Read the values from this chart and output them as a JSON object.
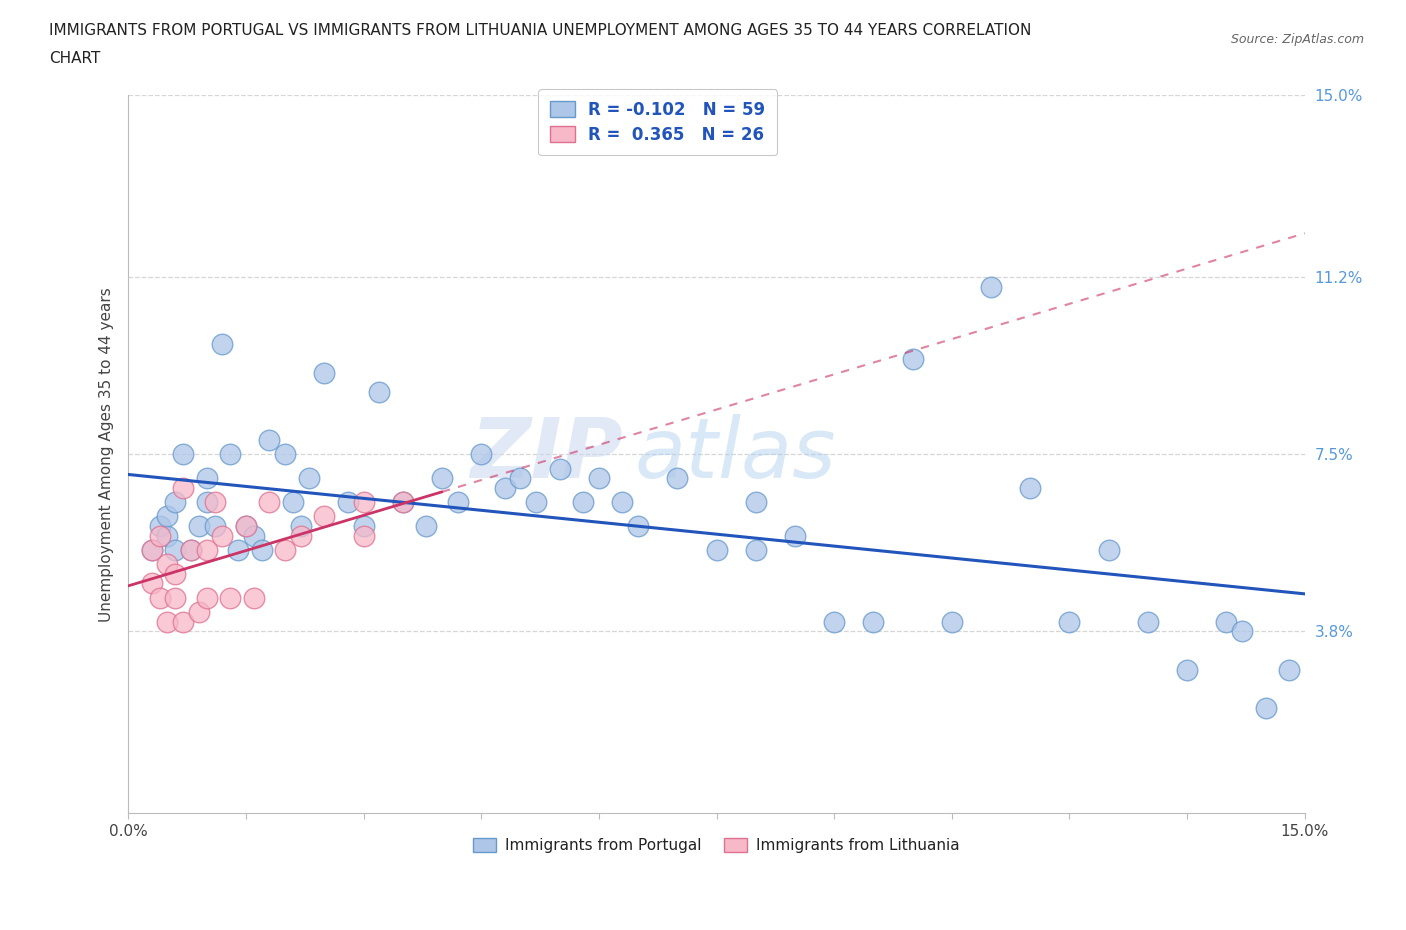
{
  "title": "IMMIGRANTS FROM PORTUGAL VS IMMIGRANTS FROM LITHUANIA UNEMPLOYMENT AMONG AGES 35 TO 44 YEARS CORRELATION\nCHART",
  "source": "Source: ZipAtlas.com",
  "ylabel": "Unemployment Among Ages 35 to 44 years",
  "xlim": [
    0,
    15
  ],
  "ylim": [
    0,
    15
  ],
  "ytick_positions": [
    3.8,
    7.5,
    11.2,
    15.0
  ],
  "ytick_labels": [
    "3.8%",
    "7.5%",
    "11.2%",
    "15.0%"
  ],
  "portugal_color": "#aec6e8",
  "portugal_edge": "#6699cc",
  "lithuania_color": "#f7b8c8",
  "lithuania_edge": "#e07090",
  "portugal_R": -0.102,
  "portugal_N": 59,
  "lithuania_R": 0.365,
  "lithuania_N": 26,
  "portugal_line_color": "#2255bb",
  "lithuania_line_color": "#cc3366",
  "portugal_x": [
    0.3,
    0.4,
    0.5,
    0.5,
    0.6,
    0.6,
    0.7,
    0.8,
    0.9,
    1.0,
    1.0,
    1.1,
    1.2,
    1.3,
    1.4,
    1.5,
    1.6,
    1.7,
    1.8,
    2.0,
    2.1,
    2.2,
    2.3,
    2.5,
    2.8,
    3.0,
    3.2,
    3.5,
    3.8,
    4.0,
    4.2,
    4.5,
    4.8,
    5.0,
    5.2,
    5.5,
    5.8,
    6.0,
    6.3,
    6.5,
    7.0,
    7.5,
    8.0,
    8.0,
    8.5,
    9.0,
    9.5,
    10.0,
    10.5,
    11.0,
    11.5,
    12.0,
    12.5,
    13.0,
    13.5,
    14.0,
    14.2,
    14.5,
    14.8
  ],
  "portugal_y": [
    5.5,
    6.0,
    5.8,
    6.2,
    5.5,
    6.5,
    7.5,
    5.5,
    6.0,
    6.5,
    7.0,
    6.0,
    9.8,
    7.5,
    5.5,
    6.0,
    5.8,
    5.5,
    7.8,
    7.5,
    6.5,
    6.0,
    7.0,
    9.2,
    6.5,
    6.0,
    8.8,
    6.5,
    6.0,
    7.0,
    6.5,
    7.5,
    6.8,
    7.0,
    6.5,
    7.2,
    6.5,
    7.0,
    6.5,
    6.0,
    7.0,
    5.5,
    5.5,
    6.5,
    5.8,
    4.0,
    4.0,
    9.5,
    4.0,
    11.0,
    6.8,
    4.0,
    5.5,
    4.0,
    3.0,
    4.0,
    3.8,
    2.2,
    3.0
  ],
  "lithuania_x": [
    0.3,
    0.3,
    0.4,
    0.4,
    0.5,
    0.5,
    0.6,
    0.6,
    0.7,
    0.7,
    0.8,
    0.9,
    1.0,
    1.0,
    1.1,
    1.2,
    1.3,
    1.5,
    1.6,
    1.8,
    2.0,
    2.2,
    2.5,
    3.0,
    3.0,
    3.5
  ],
  "lithuania_y": [
    4.8,
    5.5,
    4.5,
    5.8,
    4.0,
    5.2,
    4.5,
    5.0,
    4.0,
    6.8,
    5.5,
    4.2,
    4.5,
    5.5,
    6.5,
    5.8,
    4.5,
    6.0,
    4.5,
    6.5,
    5.5,
    5.8,
    6.2,
    5.8,
    6.5,
    6.5
  ]
}
